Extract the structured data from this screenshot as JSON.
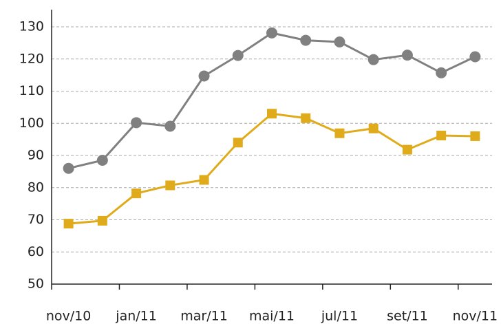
{
  "chart_data": {
    "type": "line",
    "categories": [
      "nov/10",
      null,
      "jan/11",
      null,
      "mar/11",
      null,
      "mai/11",
      null,
      "jul/11",
      null,
      "set/11",
      null,
      "nov/11"
    ],
    "series": [
      {
        "color": "#808080",
        "marker": "circle",
        "values": [
          86,
          88.5,
          100.2,
          99.1,
          114.7,
          121.1,
          128.1,
          125.8,
          125.3,
          119.8,
          121.2,
          115.7,
          120.7
        ]
      },
      {
        "color": "#e0ab1a",
        "marker": "square",
        "values": [
          68.8,
          69.7,
          78.2,
          80.7,
          82.4,
          94,
          103,
          101.6,
          96.9,
          98.4,
          91.8,
          96.2,
          96
        ]
      }
    ],
    "ylim": [
      50,
      130
    ],
    "yticks": [
      50,
      60,
      70,
      80,
      90,
      100,
      110,
      120,
      130
    ],
    "grid": true
  }
}
